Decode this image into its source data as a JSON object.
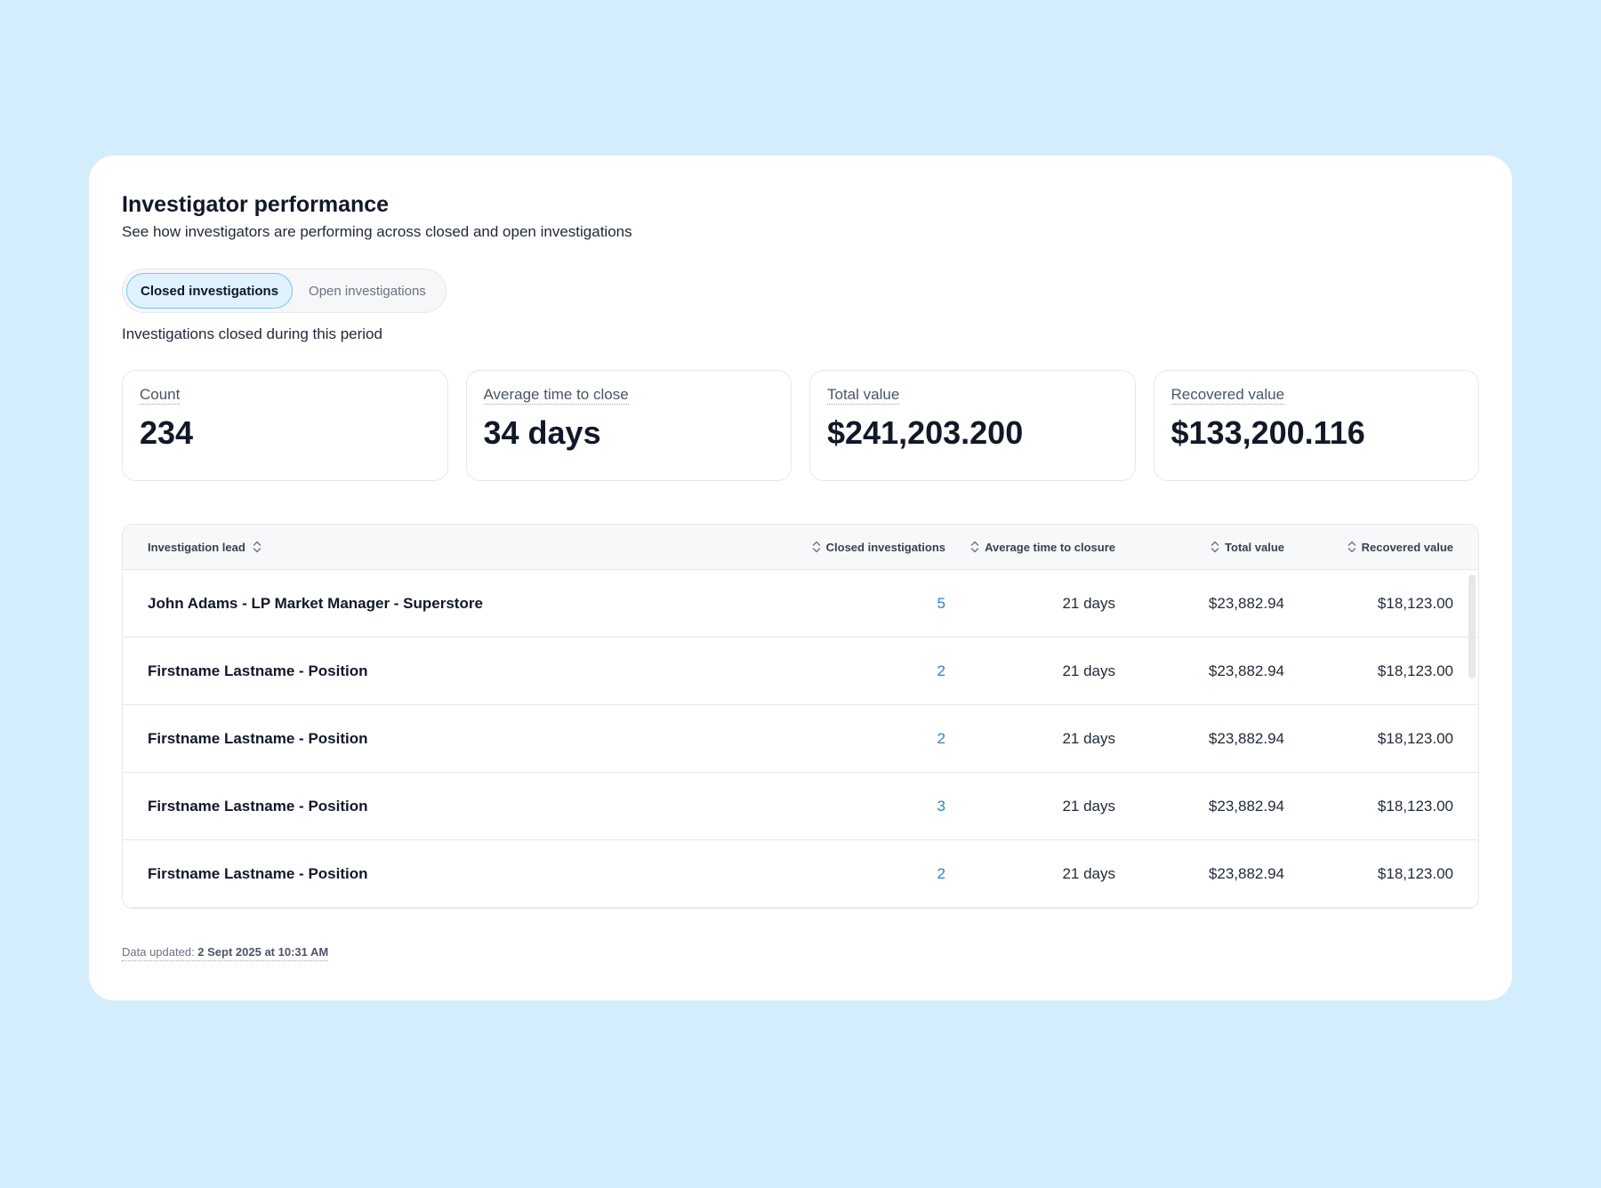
{
  "header": {
    "title": "Investigator performance",
    "subtitle": "See how investigators are performing across closed and open investigations"
  },
  "tabs": [
    {
      "label": "Closed investigations",
      "active": true
    },
    {
      "label": "Open investigations",
      "active": false
    }
  ],
  "period_label": "Investigations closed during this period",
  "kpis": [
    {
      "label": "Count",
      "value": "234"
    },
    {
      "label": "Average time to close",
      "value": "34 days"
    },
    {
      "label": "Total value",
      "value": "$241,203.200"
    },
    {
      "label": "Recovered value",
      "value": "$133,200.116"
    }
  ],
  "table": {
    "columns": {
      "lead": "Investigation lead",
      "closed": "Closed investigations",
      "avg": "Average time to closure",
      "total": "Total value",
      "recovered": "Recovered value"
    },
    "rows": [
      {
        "lead": "John Adams - LP Market Manager - Superstore",
        "closed": "5",
        "avg": "21 days",
        "total": "$23,882.94",
        "recovered": "$18,123.00"
      },
      {
        "lead": "Firstname Lastname - Position",
        "closed": "2",
        "avg": "21 days",
        "total": "$23,882.94",
        "recovered": "$18,123.00"
      },
      {
        "lead": "Firstname Lastname - Position",
        "closed": "2",
        "avg": "21 days",
        "total": "$23,882.94",
        "recovered": "$18,123.00"
      },
      {
        "lead": "Firstname Lastname - Position",
        "closed": "3",
        "avg": "21 days",
        "total": "$23,882.94",
        "recovered": "$18,123.00"
      },
      {
        "lead": "Firstname Lastname - Position",
        "closed": "2",
        "avg": "21 days",
        "total": "$23,882.94",
        "recovered": "$18,123.00"
      }
    ]
  },
  "footer": {
    "label": "Data updated: ",
    "value": "2 Sept 2025 at 10:31 AM"
  },
  "colors": {
    "background": "#d4edfc",
    "accent_link": "#2f7fd0",
    "active_tab_bg": "#e0f2fe",
    "active_tab_border": "#7cc4ee"
  },
  "icons": {
    "sort": "sort-updown-icon"
  }
}
